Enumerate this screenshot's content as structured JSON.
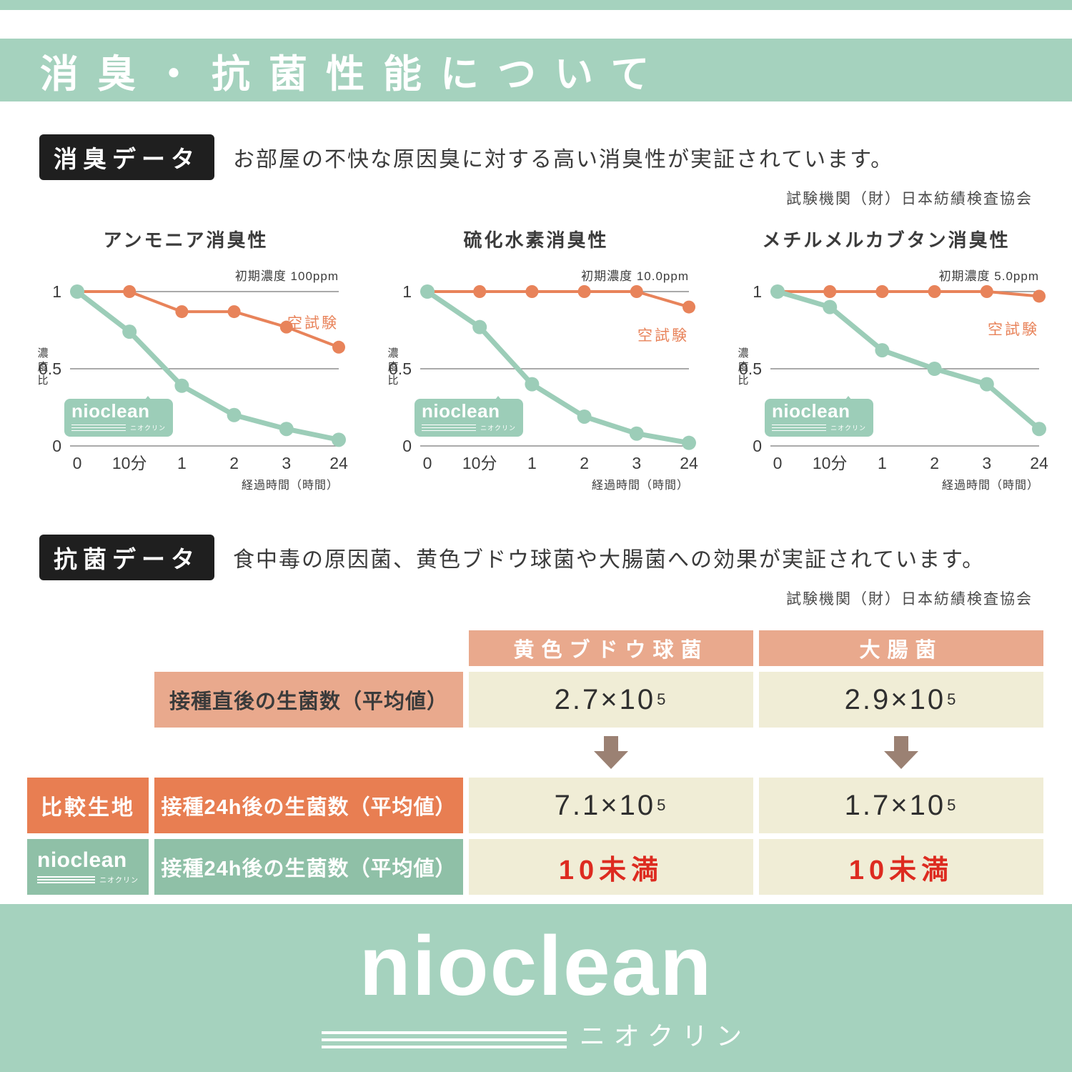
{
  "page": {
    "title": "消臭・抗菌性能について",
    "accent_green": "#a5d2be",
    "accent_orange": "#e8835a"
  },
  "logo": {
    "text": "nioclean",
    "sub": "ニオクリン"
  },
  "deodorant": {
    "badge": "消臭データ",
    "description": "お部屋の不快な原因臭に対する高い消臭性が実証されています。",
    "agency": "試験機関（財）日本紡績検査協会"
  },
  "chart_data": [
    {
      "type": "line",
      "title": "アンモニア消臭性",
      "note": "初期濃度 100ppm",
      "ylabel": "濃度比",
      "xlabel": "経過時間（時間）",
      "x_ticks": [
        "0",
        "10分",
        "1",
        "2",
        "3",
        "24"
      ],
      "y_ticks": [
        "1",
        "0.5",
        "0"
      ],
      "ylim": [
        0,
        1
      ],
      "series": [
        {
          "name": "空試験",
          "color": "#e8835a",
          "values": [
            1,
            1,
            0.87,
            0.87,
            0.77,
            0.64
          ],
          "label_y": 0.8
        },
        {
          "name": "nioclean",
          "color": "#9ccdb8",
          "values": [
            1,
            0.74,
            0.39,
            0.2,
            0.11,
            0.04
          ]
        }
      ]
    },
    {
      "type": "line",
      "title": "硫化水素消臭性",
      "note": "初期濃度 10.0ppm",
      "ylabel": "濃度比",
      "xlabel": "経過時間（時間）",
      "x_ticks": [
        "0",
        "10分",
        "1",
        "2",
        "3",
        "24"
      ],
      "y_ticks": [
        "1",
        "0.5",
        "0"
      ],
      "ylim": [
        0,
        1
      ],
      "series": [
        {
          "name": "空試験",
          "color": "#e8835a",
          "values": [
            1,
            1,
            1,
            1,
            1,
            0.9
          ],
          "label_y": 0.72
        },
        {
          "name": "nioclean",
          "color": "#9ccdb8",
          "values": [
            1,
            0.77,
            0.4,
            0.19,
            0.08,
            0.02
          ]
        }
      ]
    },
    {
      "type": "line",
      "title": "メチルメルカブタン消臭性",
      "note": "初期濃度 5.0ppm",
      "ylabel": "濃度比",
      "xlabel": "経過時間（時間）",
      "x_ticks": [
        "0",
        "10分",
        "1",
        "2",
        "3",
        "24"
      ],
      "y_ticks": [
        "1",
        "0.5",
        "0"
      ],
      "ylim": [
        0,
        1
      ],
      "series": [
        {
          "name": "空試験",
          "color": "#e8835a",
          "values": [
            1,
            1,
            1,
            1,
            1,
            0.97
          ],
          "label_y": 0.76
        },
        {
          "name": "nioclean",
          "color": "#9ccdb8",
          "values": [
            1,
            0.9,
            0.62,
            0.5,
            0.4,
            0.11
          ]
        }
      ]
    }
  ],
  "antibacterial": {
    "badge": "抗菌データ",
    "description": "食中毒の原因菌、黄色ブドウ球菌や大腸菌への効果が実証されています。",
    "agency": "試験機関（財）日本紡績検査協会",
    "table": {
      "columns": [
        "黄色ブドウ球菌",
        "大腸菌"
      ],
      "row_initial": {
        "label": "接種直後の生菌数（平均値）",
        "values": [
          {
            "base": "2.7×10",
            "sup": "5"
          },
          {
            "base": "2.9×10",
            "sup": "5"
          }
        ]
      },
      "row_compare": {
        "badge": "比較生地",
        "label": "接種24h後の生菌数（平均値）",
        "values": [
          {
            "base": "7.1×10",
            "sup": "5"
          },
          {
            "base": "1.7×10",
            "sup": "5"
          }
        ]
      },
      "row_nioclean": {
        "label": "接種24h後の生菌数（平均値）",
        "values": [
          {
            "text": "10未満"
          },
          {
            "text": "10未満"
          }
        ]
      }
    }
  }
}
